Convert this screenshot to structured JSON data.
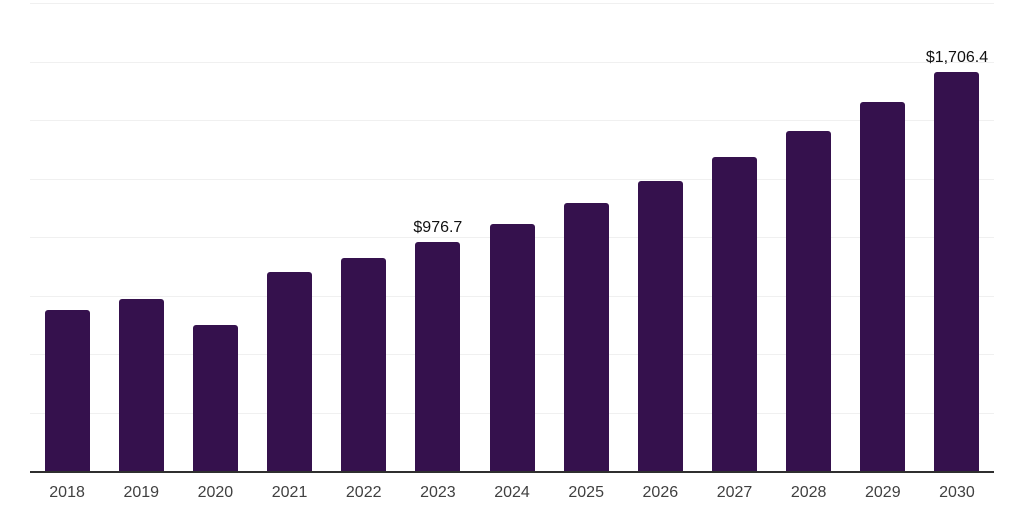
{
  "chart_data": {
    "type": "bar",
    "title": "",
    "subtitle": "",
    "xlabel": "",
    "ylabel": "",
    "categories": [
      "2018",
      "2019",
      "2020",
      "2021",
      "2022",
      "2023",
      "2024",
      "2025",
      "2026",
      "2027",
      "2028",
      "2029",
      "2030"
    ],
    "values": [
      686,
      733,
      624,
      849,
      911,
      976.7,
      1057.7,
      1145.4,
      1240.4,
      1343.3,
      1454.7,
      1575.4,
      1706.4
    ],
    "data_labels": [
      "",
      "",
      "",
      "",
      "",
      "$976.7",
      "",
      "",
      "",
      "",
      "",
      "",
      "$1,706.4"
    ],
    "ylim": [
      0,
      2000
    ],
    "gridline_step": 250,
    "grid": true,
    "legend": false,
    "y_axis_labels_shown": false,
    "colors": {
      "bar": "#35114d",
      "axis_line": "#2f2f2f",
      "gridline": "#f0f0f0",
      "data_label": "#111111",
      "tick_label": "#404040",
      "background": "#ffffff"
    }
  }
}
